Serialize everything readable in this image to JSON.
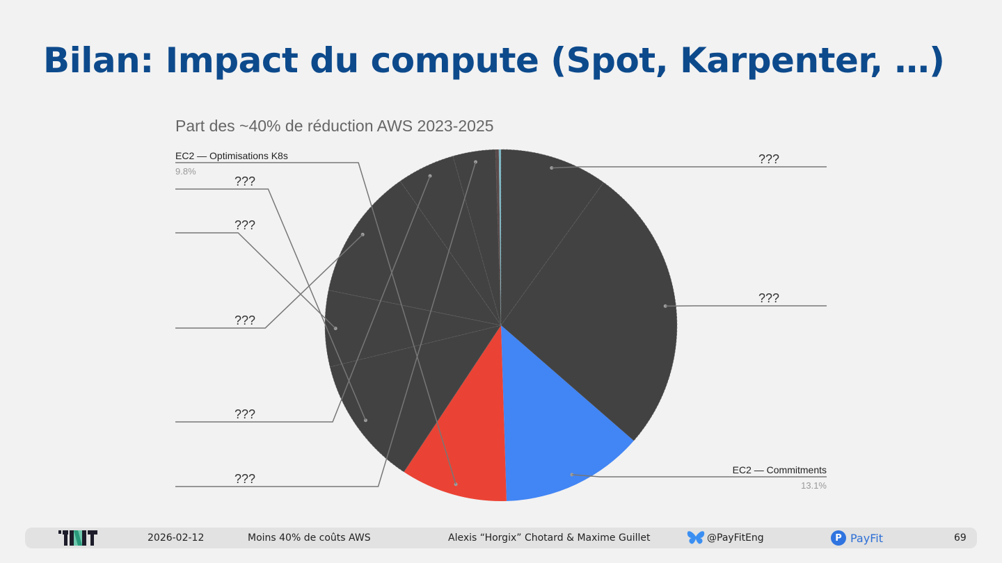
{
  "slide": {
    "title": "Bilan: Impact du compute (Spot, Karpenter, …)"
  },
  "chart_data": {
    "type": "pie",
    "title": "Part des ~40% de réduction AWS 2023-2025",
    "start_angle_deg": 0,
    "direction": "clockwise",
    "slices": [
      {
        "label": "???",
        "value": 9.9,
        "color": "#424242",
        "show_value": false,
        "label_side": "right"
      },
      {
        "label": "???",
        "value": 26.5,
        "color": "#424242",
        "show_value": false,
        "label_side": "right"
      },
      {
        "label": "EC2 — Commitments",
        "value": 13.1,
        "value_label": "13.1%",
        "color": "#4285f4",
        "show_value": true,
        "label_side": "right"
      },
      {
        "label": "EC2 — Optimisations K8s",
        "value": 9.8,
        "value_label": "9.8%",
        "color": "#ea4335",
        "show_value": true,
        "label_side": "left"
      },
      {
        "label": "???",
        "value": 11.9,
        "color": "#424242",
        "show_value": false,
        "label_side": "left"
      },
      {
        "label": "???",
        "value": 7.0,
        "color": "#424242",
        "show_value": false,
        "label_side": "left"
      },
      {
        "label": "???",
        "value": 12.1,
        "color": "#424242",
        "show_value": false,
        "label_side": "left"
      },
      {
        "label": "???",
        "value": 5.3,
        "color": "#424242",
        "show_value": false,
        "label_side": "left"
      },
      {
        "label": "???",
        "value": 3.9,
        "color": "#424242",
        "show_value": false,
        "label_side": "left"
      },
      {
        "label": "",
        "value": 0.3,
        "color": "#5a4a4a",
        "show_value": false,
        "label_side": "none"
      },
      {
        "label": "",
        "value": 0.2,
        "color": "#7fb8c4",
        "show_value": false,
        "label_side": "none"
      }
    ],
    "legend": "none"
  },
  "footer": {
    "logo": "TNT",
    "date": "2026-02-12",
    "talk_title": "Moins 40% de coûts AWS",
    "authors": "Alexis “Horgix” Chotard & Maxime Guillet",
    "social_icon": "bluesky-butterfly-icon",
    "social_handle": "@PayFitEng",
    "brand_icon_letter": "P",
    "brand": "PayFit",
    "page_number": "69"
  }
}
